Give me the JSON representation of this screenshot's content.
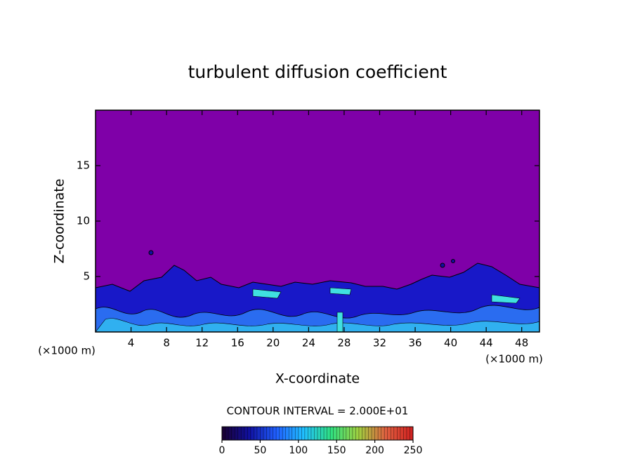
{
  "chart_data": {
    "type": "contour",
    "title": "turbulent diffusion coefficient",
    "x_label": "X-coordinate",
    "y_label": "Z-coordinate",
    "x_unit": "(×1000 m)",
    "y_unit": "(×1000 m)",
    "xlim": [
      0,
      50
    ],
    "xticks": [
      4,
      8,
      12,
      16,
      20,
      24,
      28,
      32,
      36,
      40,
      44,
      48
    ],
    "ylim": [
      0,
      20
    ],
    "yticks": [
      5,
      10,
      15
    ],
    "contour_label": "CONTOUR INTERVAL = 2.000E+01",
    "clim": [
      0,
      250
    ],
    "cticks": [
      0,
      50,
      100,
      150,
      200,
      250
    ],
    "colormap": [
      "#1a0030",
      "#1010a0",
      "#2060ff",
      "#20c0ff",
      "#30e080",
      "#a0d040",
      "#e06040",
      "#d02020"
    ]
  }
}
